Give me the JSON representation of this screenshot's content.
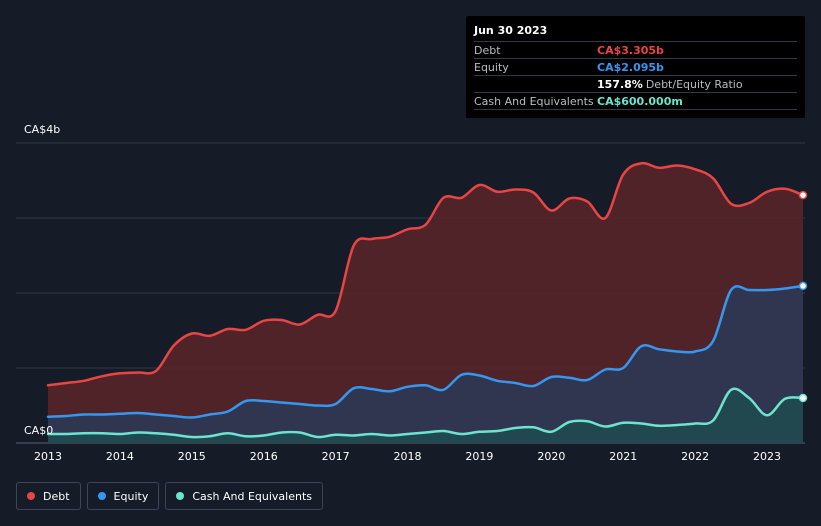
{
  "tooltip": {
    "date": "Jun 30 2023",
    "rows": [
      {
        "label": "Debt",
        "value": "CA$3.305b",
        "color": "#e84545"
      },
      {
        "label": "Equity",
        "value": "CA$2.095b",
        "color": "#3597f0"
      },
      {
        "label": "",
        "value": "157.8%",
        "sub": "Debt/Equity Ratio",
        "color": "#ffffff"
      },
      {
        "label": "Cash And Equivalents",
        "value": "CA$600.000m",
        "color": "#6ce4d0"
      }
    ]
  },
  "legend": [
    {
      "label": "Debt",
      "color": "#e84545"
    },
    {
      "label": "Equity",
      "color": "#3597f0"
    },
    {
      "label": "Cash And Equivalents",
      "color": "#6ce4d0"
    }
  ],
  "chart_data": {
    "type": "area",
    "title": "",
    "xlabel": "",
    "ylabel": "",
    "y_unit": "CA$ billions",
    "ylim": [
      0,
      4
    ],
    "xlim": [
      2013.0,
      2023.5
    ],
    "y_tick_labels": [
      {
        "value": 0,
        "label": "CA$0"
      },
      {
        "value": 4,
        "label": "CA$4b"
      }
    ],
    "x_tick_labels": [
      "2013",
      "2014",
      "2015",
      "2016",
      "2017",
      "2018",
      "2019",
      "2020",
      "2021",
      "2022",
      "2023"
    ],
    "series": [
      {
        "name": "Debt",
        "color": "#e84545",
        "fill": "#5a2428",
        "points": [
          [
            2013.0,
            0.77
          ],
          [
            2013.25,
            0.8
          ],
          [
            2013.5,
            0.83
          ],
          [
            2013.75,
            0.89
          ],
          [
            2014.0,
            0.93
          ],
          [
            2014.25,
            0.94
          ],
          [
            2014.5,
            0.96
          ],
          [
            2014.75,
            1.3
          ],
          [
            2015.0,
            1.46
          ],
          [
            2015.25,
            1.43
          ],
          [
            2015.5,
            1.52
          ],
          [
            2015.75,
            1.51
          ],
          [
            2016.0,
            1.63
          ],
          [
            2016.25,
            1.64
          ],
          [
            2016.5,
            1.58
          ],
          [
            2016.75,
            1.71
          ],
          [
            2017.0,
            1.76
          ],
          [
            2017.25,
            2.63
          ],
          [
            2017.5,
            2.72
          ],
          [
            2017.75,
            2.75
          ],
          [
            2018.0,
            2.85
          ],
          [
            2018.25,
            2.91
          ],
          [
            2018.5,
            3.27
          ],
          [
            2018.75,
            3.27
          ],
          [
            2019.0,
            3.44
          ],
          [
            2019.25,
            3.35
          ],
          [
            2019.5,
            3.38
          ],
          [
            2019.75,
            3.34
          ],
          [
            2020.0,
            3.1
          ],
          [
            2020.25,
            3.26
          ],
          [
            2020.5,
            3.22
          ],
          [
            2020.75,
            3.0
          ],
          [
            2021.0,
            3.58
          ],
          [
            2021.25,
            3.73
          ],
          [
            2021.5,
            3.67
          ],
          [
            2021.75,
            3.7
          ],
          [
            2022.0,
            3.65
          ],
          [
            2022.25,
            3.53
          ],
          [
            2022.5,
            3.19
          ],
          [
            2022.75,
            3.2
          ],
          [
            2023.0,
            3.35
          ],
          [
            2023.25,
            3.39
          ],
          [
            2023.5,
            3.305
          ]
        ]
      },
      {
        "name": "Equity",
        "color": "#3597f0",
        "fill": "#2c3a57",
        "points": [
          [
            2013.0,
            0.35
          ],
          [
            2013.25,
            0.36
          ],
          [
            2013.5,
            0.38
          ],
          [
            2013.75,
            0.38
          ],
          [
            2014.0,
            0.39
          ],
          [
            2014.25,
            0.4
          ],
          [
            2014.5,
            0.38
          ],
          [
            2014.75,
            0.36
          ],
          [
            2015.0,
            0.34
          ],
          [
            2015.25,
            0.38
          ],
          [
            2015.5,
            0.42
          ],
          [
            2015.75,
            0.56
          ],
          [
            2016.0,
            0.56
          ],
          [
            2016.25,
            0.54
          ],
          [
            2016.5,
            0.52
          ],
          [
            2016.75,
            0.5
          ],
          [
            2017.0,
            0.52
          ],
          [
            2017.25,
            0.73
          ],
          [
            2017.5,
            0.72
          ],
          [
            2017.75,
            0.69
          ],
          [
            2018.0,
            0.75
          ],
          [
            2018.25,
            0.77
          ],
          [
            2018.5,
            0.71
          ],
          [
            2018.75,
            0.91
          ],
          [
            2019.0,
            0.9
          ],
          [
            2019.25,
            0.83
          ],
          [
            2019.5,
            0.8
          ],
          [
            2019.75,
            0.76
          ],
          [
            2020.0,
            0.88
          ],
          [
            2020.25,
            0.87
          ],
          [
            2020.5,
            0.84
          ],
          [
            2020.75,
            0.98
          ],
          [
            2021.0,
            1.0
          ],
          [
            2021.25,
            1.29
          ],
          [
            2021.5,
            1.25
          ],
          [
            2021.75,
            1.22
          ],
          [
            2022.0,
            1.22
          ],
          [
            2022.25,
            1.36
          ],
          [
            2022.5,
            2.04
          ],
          [
            2022.75,
            2.04
          ],
          [
            2023.0,
            2.04
          ],
          [
            2023.25,
            2.06
          ],
          [
            2023.5,
            2.095
          ]
        ]
      },
      {
        "name": "Cash And Equivalents",
        "color": "#6ce4d0",
        "fill": "#1f4a4f",
        "points": [
          [
            2013.0,
            0.12
          ],
          [
            2013.25,
            0.12
          ],
          [
            2013.5,
            0.13
          ],
          [
            2013.75,
            0.13
          ],
          [
            2014.0,
            0.12
          ],
          [
            2014.25,
            0.14
          ],
          [
            2014.5,
            0.13
          ],
          [
            2014.75,
            0.11
          ],
          [
            2015.0,
            0.08
          ],
          [
            2015.25,
            0.09
          ],
          [
            2015.5,
            0.13
          ],
          [
            2015.75,
            0.09
          ],
          [
            2016.0,
            0.1
          ],
          [
            2016.25,
            0.14
          ],
          [
            2016.5,
            0.14
          ],
          [
            2016.75,
            0.08
          ],
          [
            2017.0,
            0.11
          ],
          [
            2017.25,
            0.1
          ],
          [
            2017.5,
            0.12
          ],
          [
            2017.75,
            0.1
          ],
          [
            2018.0,
            0.12
          ],
          [
            2018.25,
            0.14
          ],
          [
            2018.5,
            0.16
          ],
          [
            2018.75,
            0.12
          ],
          [
            2019.0,
            0.15
          ],
          [
            2019.25,
            0.16
          ],
          [
            2019.5,
            0.2
          ],
          [
            2019.75,
            0.21
          ],
          [
            2020.0,
            0.15
          ],
          [
            2020.25,
            0.28
          ],
          [
            2020.5,
            0.29
          ],
          [
            2020.75,
            0.22
          ],
          [
            2021.0,
            0.27
          ],
          [
            2021.25,
            0.26
          ],
          [
            2021.5,
            0.23
          ],
          [
            2021.75,
            0.24
          ],
          [
            2022.0,
            0.26
          ],
          [
            2022.25,
            0.3
          ],
          [
            2022.5,
            0.71
          ],
          [
            2022.75,
            0.6
          ],
          [
            2023.0,
            0.37
          ],
          [
            2023.25,
            0.59
          ],
          [
            2023.5,
            0.6
          ]
        ]
      }
    ]
  }
}
